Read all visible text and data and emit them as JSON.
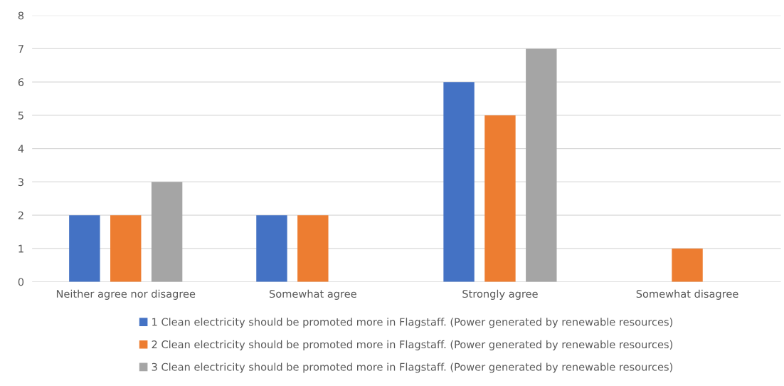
{
  "chart_data": {
    "type": "bar",
    "categories": [
      "Neither agree nor disagree",
      "Somewhat agree",
      "Strongly agree",
      "Somewhat disagree"
    ],
    "series": [
      {
        "name": "1 Clean electricity should be promoted more in Flagstaff. (Power generated by renewable resources)",
        "color": "#4472c4",
        "values": [
          2,
          2,
          6,
          null
        ]
      },
      {
        "name": "2 Clean electricity should be promoted more in Flagstaff. (Power generated by renewable resources)",
        "color": "#ed7d31",
        "values": [
          2,
          2,
          5,
          1
        ]
      },
      {
        "name": "3 Clean electricity should be promoted more in Flagstaff. (Power generated by renewable resources)",
        "color": "#a5a5a5",
        "values": [
          3,
          null,
          7,
          null
        ]
      }
    ],
    "ylim": [
      0,
      8
    ],
    "yticks": [
      0,
      1,
      2,
      3,
      4,
      5,
      6,
      7,
      8
    ],
    "grid": "y",
    "legend": "bottom"
  }
}
